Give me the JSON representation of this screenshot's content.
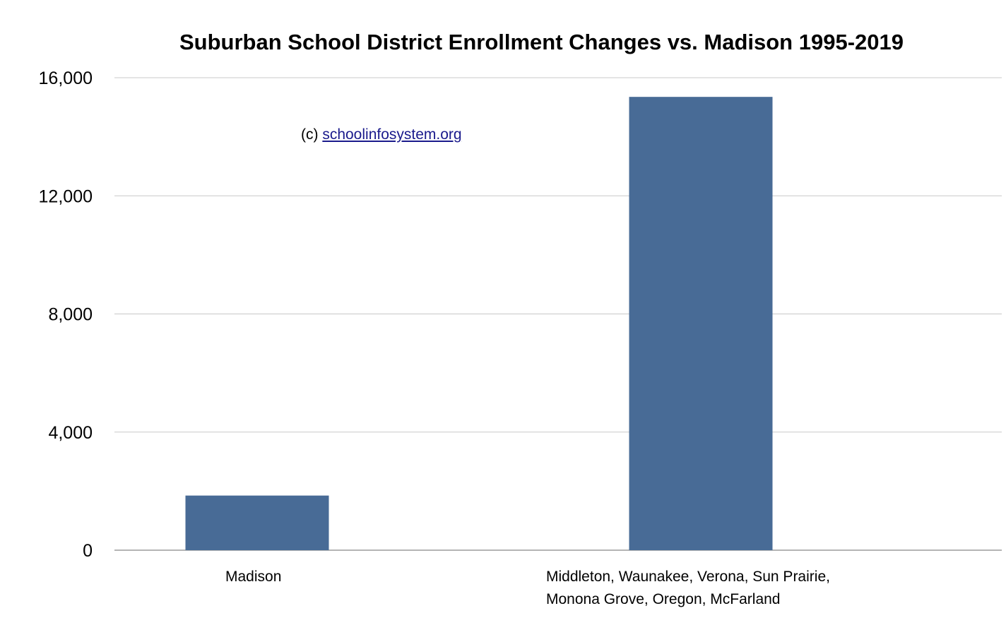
{
  "chart_data": {
    "type": "bar",
    "title": "Suburban School District Enrollment Changes vs. Madison 1995-2019",
    "watermark": {
      "prefix": "(c) ",
      "link_text": "schoolinfosystem.org"
    },
    "categories": [
      "Madison",
      "Middleton, Waunakee, Verona, Sun Prairie,\nMonona Grove, Oregon, McFarland"
    ],
    "category_lines": [
      [
        "Madison"
      ],
      [
        "Middleton, Waunakee, Verona, Sun Prairie,",
        "Monona Grove, Oregon, McFarland"
      ]
    ],
    "values": [
      1850,
      15350
    ],
    "ylim": [
      0,
      16000
    ],
    "yticks": [
      0,
      4000,
      8000,
      12000,
      16000
    ],
    "ytick_labels": [
      "0",
      "4,000",
      "8,000",
      "12,000",
      "16,000"
    ],
    "xlabel": "",
    "ylabel": "",
    "grid": true,
    "bar_color": "#486b96",
    "grid_color": "#c8c8c8",
    "axis_color": "#888888"
  }
}
